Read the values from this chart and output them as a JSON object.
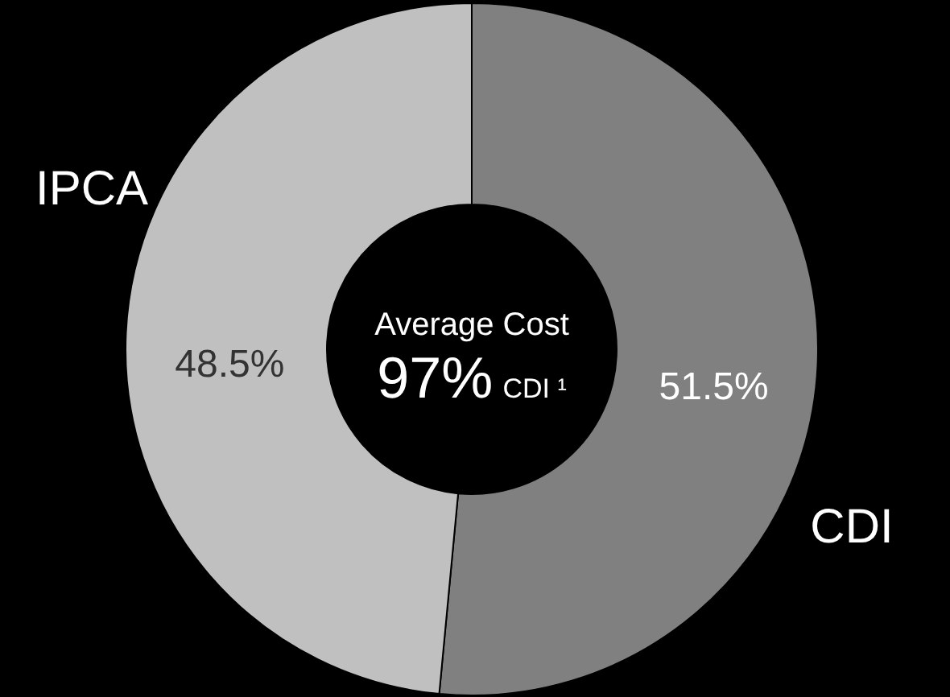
{
  "chart_data": {
    "type": "donut",
    "categories": [
      "CDI",
      "IPCA"
    ],
    "values": [
      51.5,
      48.5
    ],
    "colors": [
      "#808080",
      "#c0c0c0"
    ],
    "value_labels": [
      "51.5%",
      "48.5%"
    ],
    "annotations": [
      "Average Cost",
      "97%",
      "CDI ¹"
    ]
  }
}
